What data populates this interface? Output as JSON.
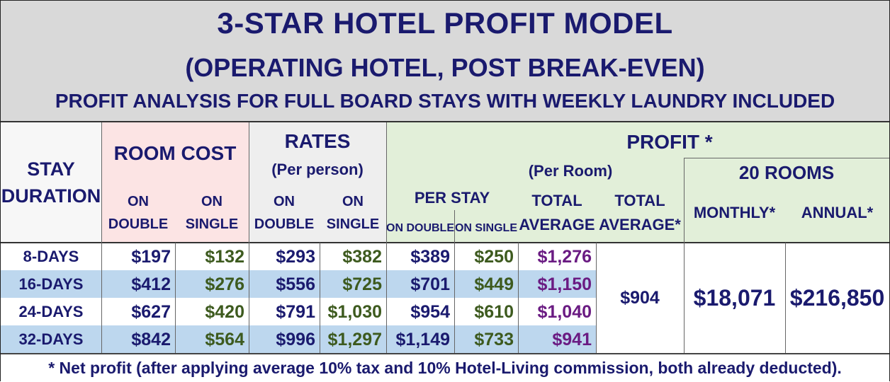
{
  "title": "3-STAR HOTEL PROFIT MODEL",
  "subtitle": "(OPERATING HOTEL, POST BREAK-EVEN)",
  "subheading": "PROFIT ANALYSIS FOR FULL BOARD STAYS WITH WEEKLY LAUNDRY INCLUDED",
  "headers": {
    "stay": "STAY",
    "duration": "DURATION",
    "room_cost": "ROOM COST",
    "rates": "RATES",
    "per_person": "(Per person)",
    "profit": "PROFIT *",
    "per_room": "(Per Room)",
    "twenty_rooms": "20 ROOMS",
    "on": "ON",
    "double": "DOUBLE",
    "single": "SINGLE",
    "per_stay": "PER STAY",
    "on_double": "ON DOUBLE",
    "on_single": "ON SINGLE",
    "total": "TOTAL",
    "average": "AVERAGE",
    "average_star": "AVERAGE*",
    "monthly": "MONTHLY*",
    "annual": "ANNUAL*"
  },
  "rows": [
    {
      "stay": "8-DAYS",
      "cost_double": "$197",
      "cost_single": "$132",
      "rate_double": "$293",
      "rate_single": "$382",
      "profit_double": "$389",
      "profit_single": "$250",
      "total_avg": "$1,276"
    },
    {
      "stay": "16-DAYS",
      "cost_double": "$412",
      "cost_single": "$276",
      "rate_double": "$556",
      "rate_single": "$725",
      "profit_double": "$701",
      "profit_single": "$449",
      "total_avg": "$1,150"
    },
    {
      "stay": "24-DAYS",
      "cost_double": "$627",
      "cost_single": "$420",
      "rate_double": "$791",
      "rate_single": "$1,030",
      "profit_double": "$954",
      "profit_single": "$610",
      "total_avg": "$1,040"
    },
    {
      "stay": "32-DAYS",
      "cost_double": "$842",
      "cost_single": "$564",
      "rate_double": "$996",
      "rate_single": "$1,297",
      "profit_double": "$1,149",
      "profit_single": "$733",
      "total_avg": "$941"
    }
  ],
  "total_average": "$904",
  "monthly": "$18,071",
  "annual": "$216,850",
  "footnote": "* Net profit (after applying average 10% tax and 10% Hotel-Living commission, both already deducted).",
  "colors": {
    "navy_text": "#1a1a6e",
    "green_text": "#3d5a1e",
    "purple_text": "#6a1b82",
    "row_blue": "#bdd7ee",
    "header_pink": "#fce4e4",
    "header_green": "#e2efd9",
    "title_grey": "#d9d9d9"
  }
}
